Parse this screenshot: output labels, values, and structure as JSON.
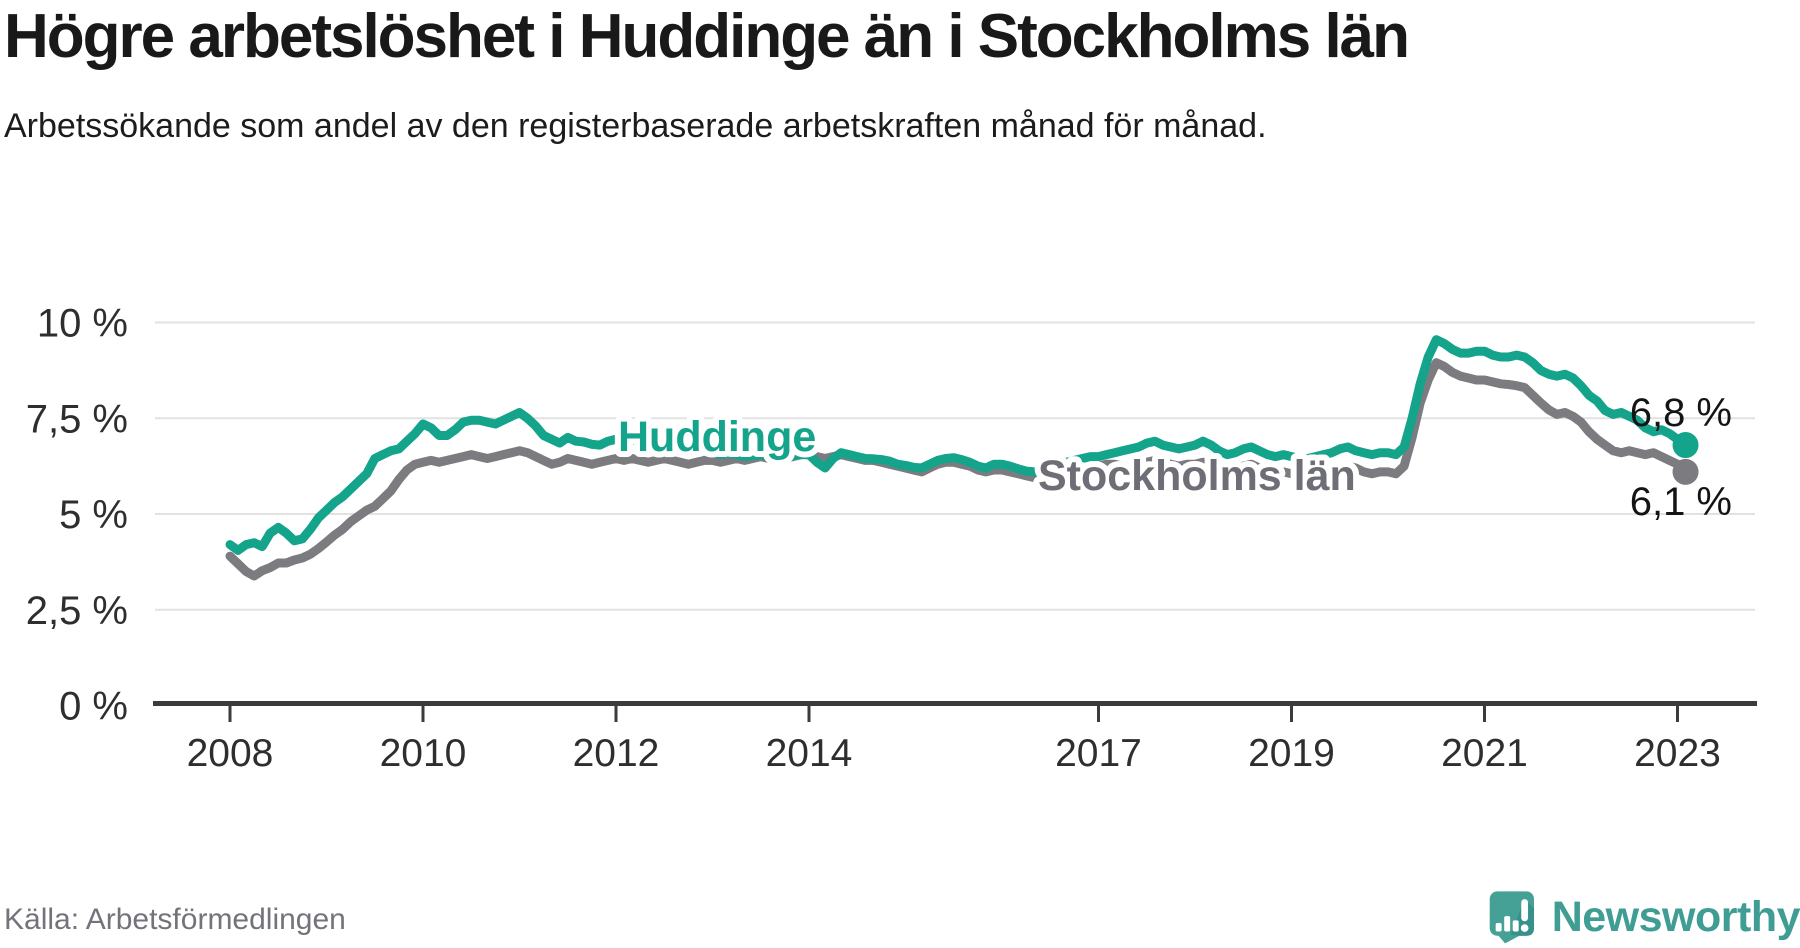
{
  "header": {
    "title": "Högre arbetslöshet i Huddinge än i Stockholms län",
    "subtitle": "Arbetssökande som andel av den registerbaserade arbetskraften månad för månad."
  },
  "footer": {
    "source": "Källa: Arbetsförmedlingen",
    "logo_text": "Newsworthy"
  },
  "colors": {
    "huddinge_teal": "#14a38b",
    "stockholm_gray": "#7c7c80",
    "stockholm_label_gray": "#6e6e76",
    "gridline": "#e2e2e2",
    "axis": "#3b3b3b",
    "logo_teal": "#3f9d94",
    "logo_bubble": "#45a096",
    "logo_bubble_shade": "#35918a"
  },
  "chart_data": {
    "type": "line",
    "title": "Högre arbetslöshet i Huddinge än i Stockholms län",
    "subtitle": "Arbetssökande som andel av den registerbaserade arbetskraften månad för månad.",
    "x_unit": "month",
    "x_range": {
      "start": "2008-01",
      "end": "2023-02",
      "points": 182
    },
    "xlabel": "",
    "ylabel": "",
    "ylim": [
      0,
      10.8
    ],
    "grid": true,
    "legend_position": "inline-line-labels",
    "y_axis": {
      "tick_labels": [
        "10 %",
        "7,5 %",
        "5 %",
        "2,5 %",
        "0 %"
      ],
      "tick_values": [
        10,
        7.5,
        5,
        2.5,
        0
      ]
    },
    "x_axis": {
      "tick_labels": [
        "2008",
        "2010",
        "2012",
        "2014",
        "2017",
        "2019",
        "2021",
        "2023"
      ],
      "tick_years": [
        2008,
        2010,
        2012,
        2014,
        2017,
        2019,
        2021,
        2023
      ]
    },
    "series": [
      {
        "name": "Huddinge",
        "color": "#14a38b",
        "end_label": "6,8 %",
        "end_value": 6.8,
        "values": [
          4.2,
          4.05,
          4.2,
          4.25,
          4.15,
          4.5,
          4.65,
          4.5,
          4.3,
          4.35,
          4.6,
          4.9,
          5.1,
          5.3,
          5.45,
          5.65,
          5.85,
          6.05,
          6.45,
          6.55,
          6.65,
          6.7,
          6.9,
          7.1,
          7.35,
          7.25,
          7.05,
          7.05,
          7.2,
          7.4,
          7.45,
          7.45,
          7.4,
          7.35,
          7.45,
          7.55,
          7.65,
          7.5,
          7.3,
          7.05,
          6.95,
          6.85,
          7.0,
          6.9,
          6.88,
          6.82,
          6.8,
          6.9,
          6.95,
          6.85,
          6.93,
          6.88,
          6.85,
          6.9,
          6.88,
          6.85,
          6.8,
          6.75,
          6.7,
          6.65,
          6.6,
          6.55,
          6.58,
          6.55,
          6.5,
          6.52,
          6.55,
          6.5,
          6.48,
          6.5,
          6.52,
          6.55,
          6.55,
          6.35,
          6.2,
          6.45,
          6.6,
          6.55,
          6.5,
          6.45,
          6.44,
          6.42,
          6.38,
          6.3,
          6.27,
          6.22,
          6.2,
          6.3,
          6.4,
          6.45,
          6.47,
          6.42,
          6.35,
          6.25,
          6.2,
          6.3,
          6.3,
          6.25,
          6.18,
          6.12,
          6.1,
          6.15,
          6.2,
          6.3,
          6.35,
          6.4,
          6.45,
          6.5,
          6.5,
          6.55,
          6.6,
          6.65,
          6.7,
          6.75,
          6.85,
          6.9,
          6.8,
          6.75,
          6.7,
          6.75,
          6.8,
          6.9,
          6.8,
          6.65,
          6.55,
          6.6,
          6.7,
          6.75,
          6.65,
          6.55,
          6.5,
          6.55,
          6.5,
          6.45,
          6.45,
          6.5,
          6.55,
          6.6,
          6.7,
          6.75,
          6.65,
          6.6,
          6.55,
          6.6,
          6.6,
          6.55,
          6.75,
          7.5,
          8.4,
          9.1,
          9.55,
          9.45,
          9.3,
          9.2,
          9.2,
          9.25,
          9.25,
          9.15,
          9.1,
          9.1,
          9.15,
          9.1,
          8.95,
          8.75,
          8.65,
          8.6,
          8.65,
          8.55,
          8.35,
          8.1,
          7.95,
          7.7,
          7.6,
          7.65,
          7.55,
          7.45,
          7.25,
          7.15,
          7.2,
          7.1,
          6.95,
          6.8
        ]
      },
      {
        "name": "Stockholms län",
        "color": "#7c7c80",
        "end_label": "6,1 %",
        "end_value": 6.1,
        "values": [
          3.9,
          3.7,
          3.5,
          3.38,
          3.52,
          3.6,
          3.72,
          3.72,
          3.8,
          3.85,
          3.95,
          4.1,
          4.27,
          4.45,
          4.6,
          4.8,
          4.95,
          5.1,
          5.2,
          5.4,
          5.6,
          5.9,
          6.15,
          6.3,
          6.35,
          6.4,
          6.35,
          6.4,
          6.45,
          6.5,
          6.55,
          6.5,
          6.45,
          6.5,
          6.55,
          6.6,
          6.65,
          6.6,
          6.5,
          6.4,
          6.3,
          6.35,
          6.45,
          6.4,
          6.35,
          6.3,
          6.35,
          6.4,
          6.45,
          6.4,
          6.45,
          6.4,
          6.35,
          6.4,
          6.45,
          6.4,
          6.35,
          6.3,
          6.35,
          6.4,
          6.4,
          6.35,
          6.4,
          6.45,
          6.4,
          6.45,
          6.5,
          6.45,
          6.4,
          6.45,
          6.5,
          6.55,
          6.55,
          6.5,
          6.45,
          6.5,
          6.55,
          6.5,
          6.45,
          6.4,
          6.4,
          6.35,
          6.3,
          6.25,
          6.2,
          6.15,
          6.1,
          6.2,
          6.3,
          6.35,
          6.35,
          6.3,
          6.25,
          6.15,
          6.1,
          6.15,
          6.15,
          6.1,
          6.05,
          6.0,
          5.95,
          5.9,
          5.95,
          6.0,
          6.05,
          6.1,
          6.15,
          6.2,
          6.25,
          6.3,
          6.3,
          6.25,
          6.2,
          6.25,
          6.35,
          6.4,
          6.35,
          6.3,
          6.25,
          6.3,
          6.3,
          6.35,
          6.3,
          6.2,
          6.1,
          6.15,
          6.25,
          6.3,
          6.2,
          6.1,
          6.05,
          6.1,
          6.05,
          6.0,
          5.95,
          6.0,
          6.05,
          6.1,
          6.2,
          6.25,
          6.2,
          6.1,
          6.05,
          6.1,
          6.1,
          6.05,
          6.25,
          7.0,
          7.9,
          8.5,
          8.95,
          8.85,
          8.7,
          8.6,
          8.55,
          8.5,
          8.5,
          8.45,
          8.4,
          8.38,
          8.35,
          8.3,
          8.1,
          7.9,
          7.72,
          7.6,
          7.65,
          7.55,
          7.4,
          7.15,
          6.95,
          6.8,
          6.65,
          6.6,
          6.65,
          6.6,
          6.55,
          6.6,
          6.5,
          6.4,
          6.3,
          6.1
        ]
      }
    ]
  }
}
